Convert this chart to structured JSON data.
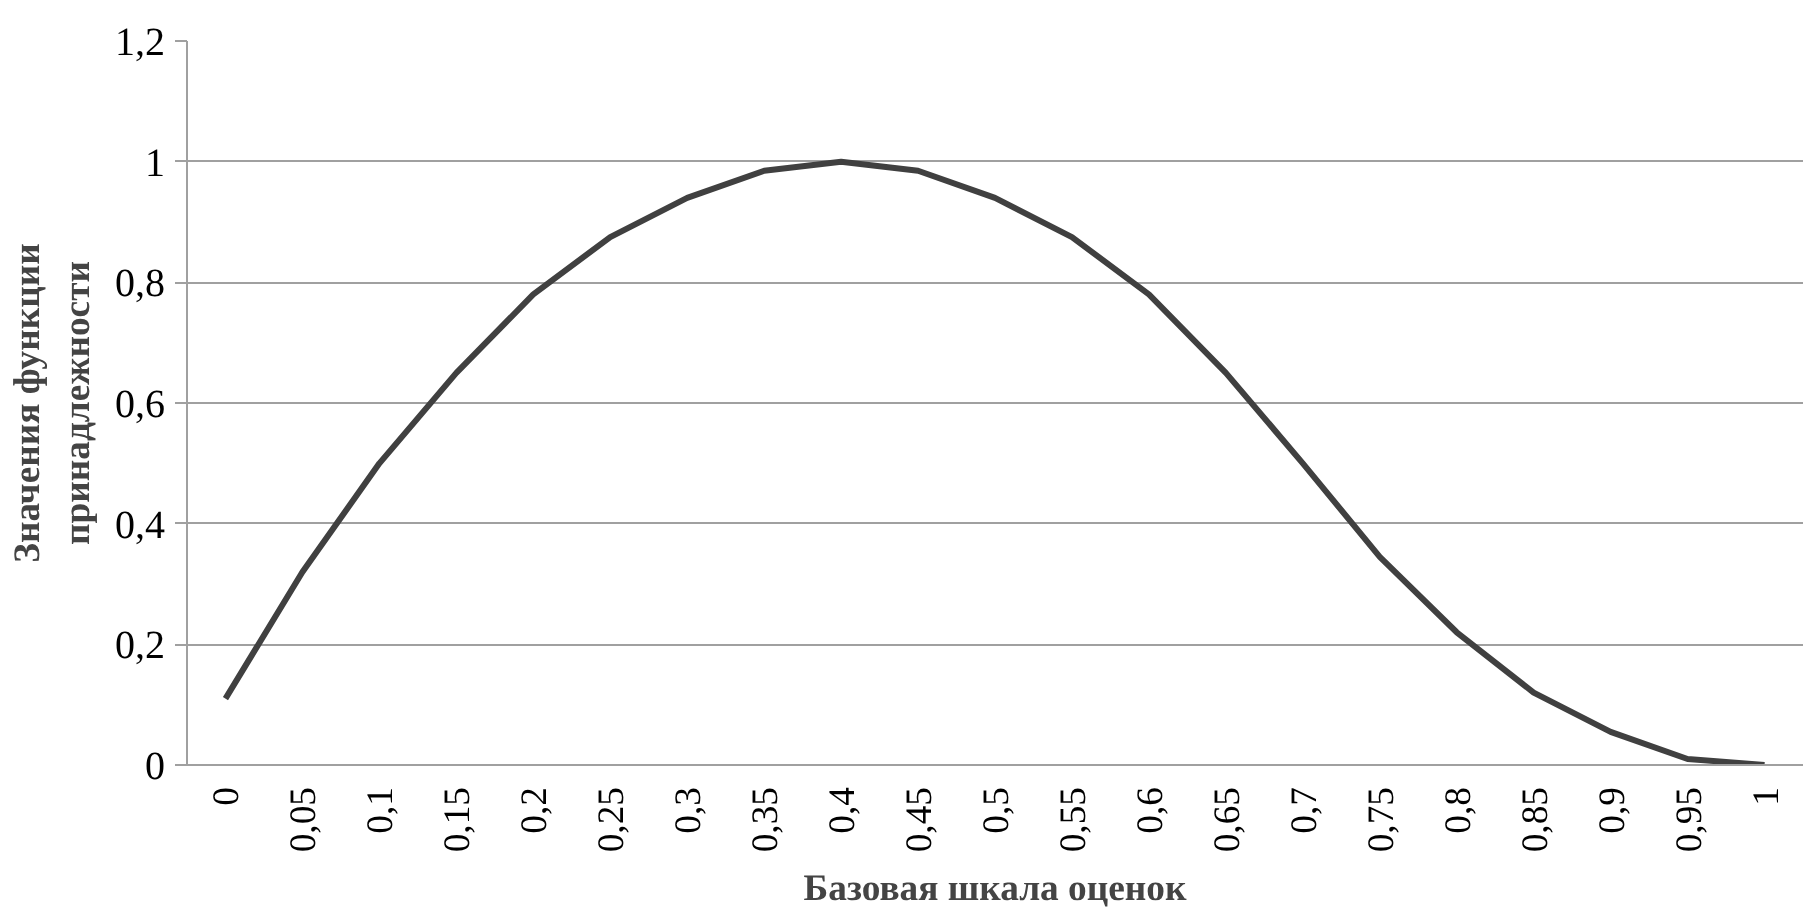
{
  "chart_data": {
    "type": "line",
    "xlabel": "Базовая шкала оценок",
    "ylabel": "Значения функции принадлежности",
    "categories": [
      "0",
      "0,05",
      "0,1",
      "0,15",
      "0,2",
      "0,25",
      "0,3",
      "0,35",
      "0,4",
      "0,45",
      "0,5",
      "0,55",
      "0,6",
      "0,65",
      "0,7",
      "0,75",
      "0,8",
      "0,85",
      "0,9",
      "0,95",
      "1"
    ],
    "series": [
      {
        "color": "#404040",
        "values": [
          0.11,
          0.32,
          0.5,
          0.65,
          0.78,
          0.875,
          0.94,
          0.985,
          1,
          0.985,
          0.94,
          0.875,
          0.78,
          0.65,
          0.5,
          0.345,
          0.22,
          0.12,
          0.055,
          0.01,
          0
        ]
      }
    ],
    "ylim": [
      0,
      1.2
    ],
    "yticks": [
      0,
      {
        "value": 0.2,
        "label": "0,2"
      },
      {
        "value": 0.4,
        "label": "0,4"
      },
      {
        "value": 0.6,
        "label": "0,6"
      },
      {
        "value": 0.8,
        "label": "0,8"
      },
      1,
      {
        "value": 1.2,
        "label": "1,2"
      }
    ],
    "grid": "y",
    "marker": "none",
    "line_style": "solid"
  }
}
